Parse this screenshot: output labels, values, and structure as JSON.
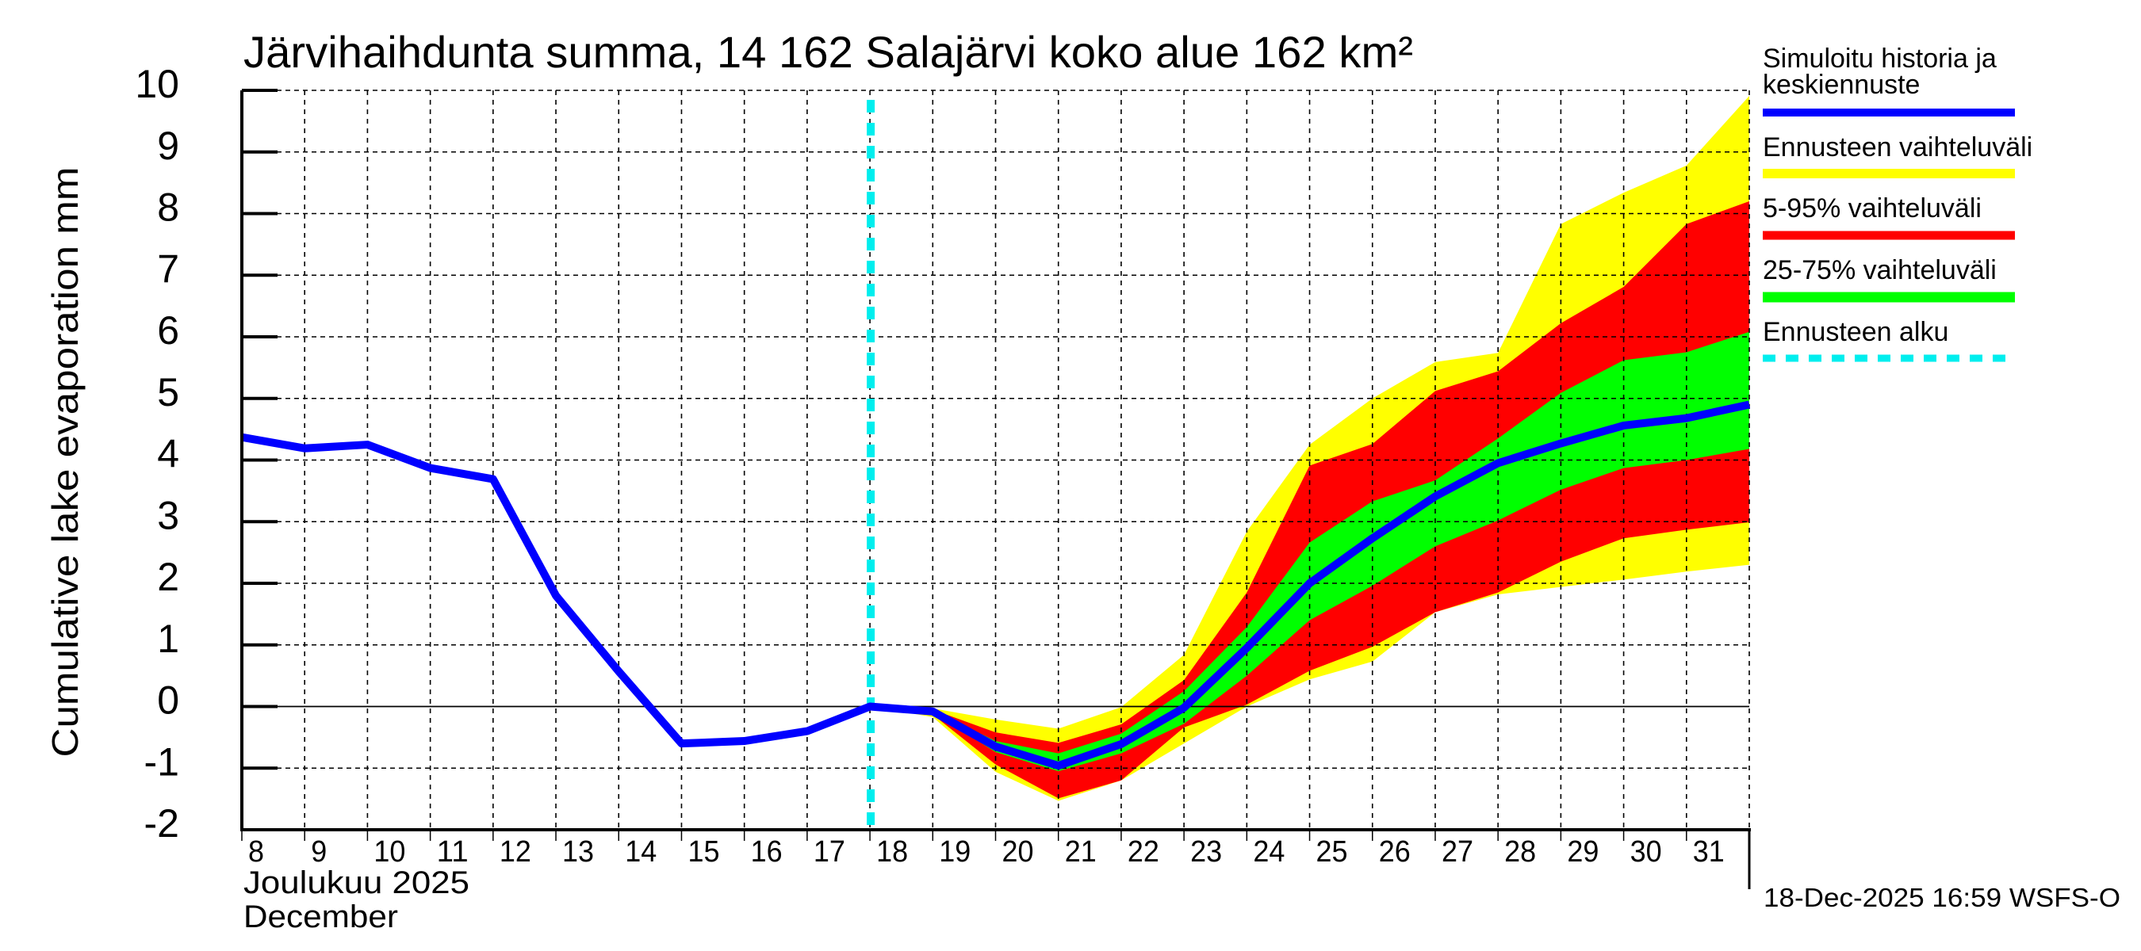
{
  "chart_data": {
    "type": "area",
    "title": "Järvihaihdunta summa, 14 162 Salajärvi koko alue 162 km²",
    "ylabel": "Cumulative lake evaporation   mm",
    "xlabel_line1": "Joulukuu  2025",
    "xlabel_line2": "December",
    "ylim": [
      -2,
      10
    ],
    "xlim": [
      8,
      32
    ],
    "yticks": [
      "-2",
      "-1",
      "0",
      "1",
      "2",
      "3",
      "4",
      "5",
      "6",
      "7",
      "8",
      "9",
      "10"
    ],
    "xticks": [
      "8",
      "9",
      "10",
      "11",
      "12",
      "13",
      "14",
      "15",
      "16",
      "17",
      "18",
      "19",
      "20",
      "21",
      "22",
      "23",
      "24",
      "25",
      "26",
      "27",
      "28",
      "29",
      "30",
      "31"
    ],
    "grid": true,
    "forecast_start_day": 18,
    "history": {
      "name": "Simuloitu historia ja keskiennuste",
      "x": [
        8,
        9,
        10,
        11,
        12,
        13,
        14,
        15,
        16,
        17,
        18
      ],
      "values": [
        4.37,
        4.19,
        4.25,
        3.87,
        3.69,
        1.8,
        0.57,
        -0.6,
        -0.56,
        -0.4,
        0.0
      ]
    },
    "forecast_x": [
      18,
      19,
      20,
      21,
      22,
      23,
      24,
      25,
      26,
      27,
      28,
      29,
      30,
      31,
      32
    ],
    "median": [
      0.0,
      -0.08,
      -0.65,
      -0.96,
      -0.61,
      -0.02,
      0.95,
      2.0,
      2.73,
      3.41,
      3.95,
      4.27,
      4.56,
      4.68,
      4.9
    ],
    "bands": [
      {
        "name": "Ennusteen vaihteluväli",
        "color": "#ffff00",
        "upper": [
          0.0,
          -0.03,
          -0.21,
          -0.36,
          -0.01,
          0.84,
          2.84,
          4.25,
          5.0,
          5.59,
          5.74,
          7.83,
          8.34,
          8.78,
          9.91
        ],
        "lower": [
          0.0,
          -0.17,
          -1.06,
          -1.53,
          -1.2,
          -0.6,
          0.0,
          0.44,
          0.73,
          1.53,
          1.82,
          1.94,
          2.06,
          2.19,
          2.3
        ]
      },
      {
        "name": "5-95% vaihteluväli",
        "color": "#ff0000",
        "upper": [
          0.0,
          -0.05,
          -0.42,
          -0.59,
          -0.29,
          0.43,
          1.85,
          3.91,
          4.26,
          5.12,
          5.44,
          6.22,
          6.81,
          7.83,
          8.2
        ],
        "lower": [
          0.0,
          -0.13,
          -0.94,
          -1.49,
          -1.2,
          -0.34,
          0.03,
          0.58,
          0.97,
          1.53,
          1.85,
          2.35,
          2.73,
          2.87,
          2.99
        ]
      },
      {
        "name": "25-75% vaihteluväli",
        "color": "#00ff00",
        "upper": [
          0.0,
          -0.06,
          -0.56,
          -0.76,
          -0.44,
          0.25,
          1.29,
          2.66,
          3.33,
          3.67,
          4.35,
          5.09,
          5.62,
          5.75,
          6.08
        ],
        "lower": [
          0.0,
          -0.1,
          -0.74,
          -1.05,
          -0.76,
          -0.28,
          0.5,
          1.4,
          1.96,
          2.6,
          3.02,
          3.52,
          3.87,
          4.0,
          4.18
        ]
      }
    ],
    "colors": {
      "median": "#0000ff",
      "forecast_start": "#00eeee",
      "axis": "#000000"
    },
    "legend": {
      "placement": "right",
      "items": [
        {
          "line1": "Simuloitu historia ja",
          "line2": "keskiennuste",
          "color": "#0000ff",
          "style": "solid"
        },
        {
          "line1": "Ennusteen vaihteluväli",
          "color": "#ffff00",
          "style": "solid"
        },
        {
          "line1": "5-95% vaihteluväli",
          "color": "#ff0000",
          "style": "solid"
        },
        {
          "line1": "25-75% vaihteluväli",
          "color": "#00ff00",
          "style": "solid"
        },
        {
          "line1": "Ennusteen alku",
          "color": "#00eeee",
          "style": "dashed"
        }
      ]
    },
    "timestamp": "18-Dec-2025 16:59 WSFS-O"
  }
}
